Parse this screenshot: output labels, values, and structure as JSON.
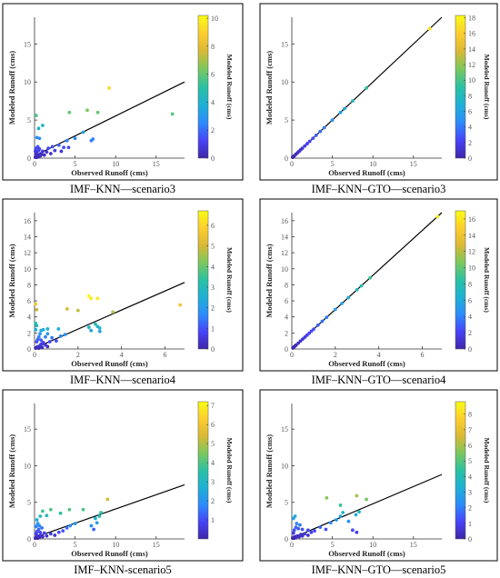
{
  "colormap": [
    "#3e26a8",
    "#4743f8",
    "#2c8cfb",
    "#1eb1d4",
    "#2bc1a3",
    "#7bc85d",
    "#dab935",
    "#fcce2e",
    "#f9fb15"
  ],
  "chart_data": [
    {
      "type": "scatter",
      "caption": "IMF–KNN—scenario3",
      "xlabel": "Observed Runoff (cms)",
      "ylabel": "Modeled Runoff (cms)",
      "colorbar_label": "Modeled Runoff (cms)",
      "xlim": [
        0,
        18.5
      ],
      "ylim": [
        0,
        18.5
      ],
      "xticks": [
        0,
        5,
        10,
        15
      ],
      "yticks": [
        0,
        5,
        10,
        15
      ],
      "clim": [
        0,
        10.2
      ],
      "cticks": [
        0,
        2,
        4,
        6,
        8,
        10
      ],
      "fit": [
        [
          0,
          0.3
        ],
        [
          18.5,
          10.0
        ]
      ],
      "points": [
        [
          0.1,
          0.1
        ],
        [
          0.2,
          0.2
        ],
        [
          0.3,
          0.1
        ],
        [
          0.4,
          0.3
        ],
        [
          0.5,
          0.2
        ],
        [
          0.6,
          0.4
        ],
        [
          0.2,
          0.5
        ],
        [
          0.3,
          0.8
        ],
        [
          0.5,
          1.0
        ],
        [
          0.8,
          0.6
        ],
        [
          0.1,
          0.9
        ],
        [
          0.2,
          1.3
        ],
        [
          0.4,
          1.5
        ],
        [
          0.6,
          1.2
        ],
        [
          0.7,
          0.3
        ],
        [
          0.9,
          0.5
        ],
        [
          1.0,
          0.9
        ],
        [
          1.2,
          0.4
        ],
        [
          1.5,
          0.8
        ],
        [
          1.7,
          1.3
        ],
        [
          2.0,
          0.6
        ],
        [
          2.2,
          1.5
        ],
        [
          2.5,
          1.0
        ],
        [
          3.0,
          1.7
        ],
        [
          3.3,
          0.9
        ],
        [
          3.6,
          1.4
        ],
        [
          4.0,
          2.3
        ],
        [
          4.2,
          1.4
        ],
        [
          5.0,
          2.6
        ],
        [
          6.0,
          3.4
        ],
        [
          7.0,
          2.3
        ],
        [
          7.2,
          2.5
        ],
        [
          0.3,
          2.7
        ],
        [
          0.6,
          2.6
        ],
        [
          0.2,
          5.6
        ],
        [
          0.5,
          3.9
        ],
        [
          1.0,
          4.3
        ],
        [
          4.3,
          6.0
        ],
        [
          6.5,
          6.3
        ],
        [
          7.8,
          6.0
        ],
        [
          17.0,
          5.8
        ],
        [
          9.2,
          9.2
        ]
      ]
    },
    {
      "type": "scatter",
      "caption": "IMF–KNN–GTO—scenario3",
      "xlabel": "Observed Runoff (cms)",
      "ylabel": "Modeled Runoff (cms)",
      "colorbar_label": "Modeled Runoff (cms)",
      "xlim": [
        0,
        18.5
      ],
      "ylim": [
        0,
        18.5
      ],
      "xticks": [
        0,
        5,
        10,
        15
      ],
      "yticks": [
        0,
        5,
        10,
        15
      ],
      "clim": [
        0,
        18.3
      ],
      "cticks": [
        0,
        2,
        4,
        6,
        8,
        10,
        12,
        14,
        16,
        18
      ],
      "fit": [
        [
          0,
          0
        ],
        [
          18.5,
          18.5
        ]
      ],
      "points": [
        [
          0.1,
          0.1
        ],
        [
          0.2,
          0.2
        ],
        [
          0.3,
          0.3
        ],
        [
          0.5,
          0.5
        ],
        [
          0.7,
          0.7
        ],
        [
          0.9,
          0.9
        ],
        [
          1.1,
          1.1
        ],
        [
          1.3,
          1.3
        ],
        [
          1.6,
          1.6
        ],
        [
          1.9,
          1.9
        ],
        [
          2.2,
          2.2
        ],
        [
          2.6,
          2.6
        ],
        [
          3.0,
          3.0
        ],
        [
          3.5,
          3.5
        ],
        [
          4.0,
          4.0
        ],
        [
          5.0,
          5.0
        ],
        [
          6.0,
          6.0
        ],
        [
          6.5,
          6.5
        ],
        [
          7.5,
          7.5
        ],
        [
          9.2,
          9.2
        ],
        [
          17.0,
          17.0
        ]
      ]
    },
    {
      "type": "scatter",
      "caption": "IMF–KNN—scenario4",
      "xlabel": "Observed Runoff (cms)",
      "ylabel": "Modeled Runoff (cms)",
      "colorbar_label": "Modeled Runoff (cms)",
      "xlim": [
        0,
        6.9
      ],
      "ylim": [
        0,
        17
      ],
      "xticks": [
        0,
        2,
        4,
        6
      ],
      "yticks": [
        0,
        2,
        4,
        6,
        8,
        10,
        12,
        14,
        16
      ],
      "clim": [
        0,
        6.7
      ],
      "cticks": [
        0,
        1,
        2,
        3,
        4,
        5,
        6
      ],
      "fit": [
        [
          0,
          0.1
        ],
        [
          6.9,
          8.3
        ]
      ],
      "points": [
        [
          0.05,
          0.1
        ],
        [
          0.1,
          0.2
        ],
        [
          0.15,
          0.3
        ],
        [
          0.2,
          0.1
        ],
        [
          0.25,
          0.4
        ],
        [
          0.3,
          0.6
        ],
        [
          0.35,
          0.2
        ],
        [
          0.4,
          0.8
        ],
        [
          0.5,
          0.5
        ],
        [
          0.6,
          0.3
        ],
        [
          0.7,
          0.9
        ],
        [
          0.1,
          0.9
        ],
        [
          0.15,
          1.2
        ],
        [
          0.2,
          1.5
        ],
        [
          0.25,
          1.9
        ],
        [
          0.3,
          2.3
        ],
        [
          0.5,
          1.5
        ],
        [
          0.6,
          1.9
        ],
        [
          0.3,
          1.1
        ],
        [
          0.05,
          2.4
        ],
        [
          0.1,
          2.9
        ],
        [
          0.05,
          3.2
        ],
        [
          0.4,
          2.4
        ],
        [
          0.6,
          2.5
        ],
        [
          0.8,
          1.4
        ],
        [
          1.0,
          1.0
        ],
        [
          1.1,
          2.5
        ],
        [
          1.2,
          1.6
        ],
        [
          1.4,
          1.8
        ],
        [
          1.5,
          5.0
        ],
        [
          2.0,
          4.8
        ],
        [
          2.5,
          6.6
        ],
        [
          2.6,
          6.3
        ],
        [
          2.9,
          6.3
        ],
        [
          2.5,
          2.7
        ],
        [
          2.8,
          3.1
        ],
        [
          2.9,
          2.8
        ],
        [
          3.0,
          2.6
        ],
        [
          3.0,
          2.2
        ],
        [
          2.6,
          2.3
        ],
        [
          0.1,
          4.9
        ],
        [
          0.05,
          5.6
        ],
        [
          3.6,
          4.6
        ],
        [
          6.7,
          5.5
        ]
      ]
    },
    {
      "type": "scatter",
      "caption": "IMF–KNN–GTO—scenario4",
      "xlabel": "Observed Runoff (cms)",
      "ylabel": "Modeled Runoff (cms)",
      "colorbar_label": "Modeled Runoff (cms)",
      "xlim": [
        0,
        6.9
      ],
      "ylim": [
        0,
        17
      ],
      "xticks": [
        0,
        2,
        4,
        6
      ],
      "yticks": [
        0,
        2,
        4,
        6,
        8,
        10,
        12,
        14,
        16
      ],
      "clim": [
        0,
        17
      ],
      "cticks": [
        0,
        2,
        4,
        6,
        8,
        10,
        12,
        14,
        16
      ],
      "fit": [
        [
          0,
          0
        ],
        [
          6.9,
          17.0
        ]
      ],
      "points": [
        [
          0.05,
          0.12
        ],
        [
          0.1,
          0.25
        ],
        [
          0.15,
          0.37
        ],
        [
          0.2,
          0.49
        ],
        [
          0.3,
          0.74
        ],
        [
          0.4,
          0.99
        ],
        [
          0.5,
          1.23
        ],
        [
          0.6,
          1.48
        ],
        [
          0.7,
          1.72
        ],
        [
          0.8,
          1.97
        ],
        [
          0.9,
          2.22
        ],
        [
          1.0,
          2.46
        ],
        [
          1.2,
          2.96
        ],
        [
          1.4,
          3.45
        ],
        [
          1.6,
          3.94
        ],
        [
          2.0,
          4.93
        ],
        [
          2.3,
          5.67
        ],
        [
          2.6,
          6.4
        ],
        [
          3.0,
          7.39
        ],
        [
          3.2,
          7.88
        ],
        [
          3.6,
          8.87
        ],
        [
          6.7,
          16.5
        ]
      ]
    },
    {
      "type": "scatter",
      "caption": "IMF–KNN-scenario5",
      "xlabel": "Observed Runoff (cms)",
      "ylabel": "Modeled Runoff (cms)",
      "colorbar_label": "Modeled Runoff (cms)",
      "xlim": [
        0,
        18.5
      ],
      "ylim": [
        0,
        18.5
      ],
      "xticks": [
        0,
        5,
        10,
        15
      ],
      "yticks": [
        0,
        5,
        10,
        15
      ],
      "clim": [
        0,
        7.2
      ],
      "cticks": [
        1,
        2,
        3,
        4,
        5,
        6,
        7
      ],
      "fit": [
        [
          0,
          0.2
        ],
        [
          18.5,
          7.4
        ]
      ],
      "points": [
        [
          0.1,
          0.1
        ],
        [
          0.2,
          0.2
        ],
        [
          0.3,
          0.3
        ],
        [
          0.4,
          0.1
        ],
        [
          0.5,
          0.4
        ],
        [
          0.6,
          0.2
        ],
        [
          0.8,
          0.5
        ],
        [
          1.0,
          0.3
        ],
        [
          0.2,
          0.7
        ],
        [
          0.3,
          1.0
        ],
        [
          0.5,
          1.3
        ],
        [
          0.7,
          0.9
        ],
        [
          0.2,
          1.7
        ],
        [
          0.4,
          2.1
        ],
        [
          0.6,
          1.8
        ],
        [
          0.9,
          1.5
        ],
        [
          1.2,
          0.8
        ],
        [
          1.5,
          0.4
        ],
        [
          2.0,
          0.7
        ],
        [
          2.5,
          0.5
        ],
        [
          3.0,
          0.9
        ],
        [
          3.5,
          1.1
        ],
        [
          4.0,
          1.5
        ],
        [
          4.4,
          1.8
        ],
        [
          5.0,
          2.1
        ],
        [
          0.3,
          2.6
        ],
        [
          0.7,
          3.1
        ],
        [
          1.0,
          3.8
        ],
        [
          1.5,
          3.2
        ],
        [
          2.0,
          4.0
        ],
        [
          3.2,
          3.5
        ],
        [
          4.3,
          4.0
        ],
        [
          6.0,
          4.0
        ],
        [
          7.0,
          1.8
        ],
        [
          7.3,
          1.3
        ],
        [
          7.7,
          2.2
        ],
        [
          7.5,
          2.8
        ],
        [
          8.0,
          3.1
        ],
        [
          8.2,
          3.6
        ],
        [
          9.0,
          5.4
        ]
      ]
    },
    {
      "type": "scatter",
      "caption": "IMF–KNN–GTO—scenario5",
      "xlabel": "Observed Runoff (cms)",
      "ylabel": "Modeled Runoff (cms)",
      "colorbar_label": "Modeled Runoff (cms)",
      "xlim": [
        0,
        18.5
      ],
      "ylim": [
        0,
        18.5
      ],
      "xticks": [
        0,
        5,
        10,
        15
      ],
      "yticks": [
        0,
        5,
        10,
        15
      ],
      "clim": [
        0,
        8.8
      ],
      "cticks": [
        0,
        1,
        2,
        3,
        4,
        5,
        6,
        7,
        8
      ],
      "fit": [
        [
          0,
          0.1
        ],
        [
          18.5,
          8.8
        ]
      ],
      "points": [
        [
          0.1,
          0.1
        ],
        [
          0.2,
          0.2
        ],
        [
          0.3,
          0.1
        ],
        [
          0.4,
          0.3
        ],
        [
          0.5,
          0.2
        ],
        [
          0.7,
          0.4
        ],
        [
          0.9,
          0.3
        ],
        [
          1.1,
          0.6
        ],
        [
          1.3,
          0.4
        ],
        [
          1.6,
          0.7
        ],
        [
          2.0,
          0.5
        ],
        [
          2.4,
          0.9
        ],
        [
          0.2,
          0.8
        ],
        [
          0.3,
          1.2
        ],
        [
          0.5,
          1.6
        ],
        [
          0.6,
          2.1
        ],
        [
          0.8,
          1.4
        ],
        [
          1.0,
          1.9
        ],
        [
          0.2,
          2.8
        ],
        [
          0.4,
          3.1
        ],
        [
          1.3,
          1.3
        ],
        [
          2.0,
          1.2
        ],
        [
          2.8,
          1.1
        ],
        [
          3.5,
          1.6
        ],
        [
          4.2,
          1.3
        ],
        [
          4.8,
          2.2
        ],
        [
          5.5,
          2.6
        ],
        [
          6.0,
          3.1
        ],
        [
          7.0,
          2.4
        ],
        [
          7.5,
          1.2
        ],
        [
          8.0,
          0.9
        ],
        [
          7.9,
          3.3
        ],
        [
          8.3,
          3.7
        ],
        [
          6.3,
          3.6
        ],
        [
          6.0,
          4.6
        ],
        [
          4.3,
          5.6
        ],
        [
          8.0,
          5.9
        ],
        [
          9.2,
          5.4
        ]
      ]
    }
  ]
}
